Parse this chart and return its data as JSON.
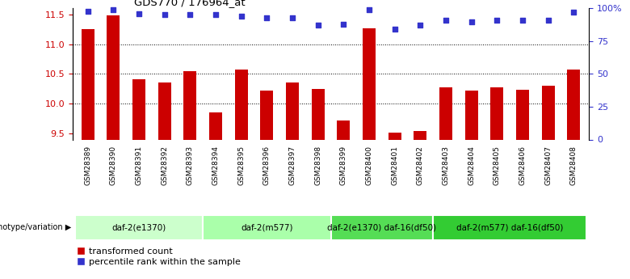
{
  "title": "GDS770 / 176964_at",
  "samples": [
    "GSM28389",
    "GSM28390",
    "GSM28391",
    "GSM28392",
    "GSM28393",
    "GSM28394",
    "GSM28395",
    "GSM28396",
    "GSM28397",
    "GSM28398",
    "GSM28399",
    "GSM28400",
    "GSM28401",
    "GSM28402",
    "GSM28403",
    "GSM28404",
    "GSM28405",
    "GSM28406",
    "GSM28407",
    "GSM28408"
  ],
  "bar_values": [
    11.25,
    11.48,
    10.41,
    10.35,
    10.55,
    9.85,
    10.57,
    10.22,
    10.35,
    10.25,
    9.72,
    11.27,
    9.52,
    9.54,
    10.28,
    10.22,
    10.28,
    10.24,
    10.3,
    10.57
  ],
  "percentile_values": [
    98,
    99,
    96,
    95,
    95,
    95,
    94,
    93,
    93,
    87,
    88,
    99,
    84,
    87,
    91,
    90,
    91,
    91,
    91,
    97
  ],
  "bar_color": "#cc0000",
  "dot_color": "#3333cc",
  "ymin": 9.4,
  "ymax": 11.6,
  "ylim_left": [
    9.4,
    11.6
  ],
  "ylim_right": [
    0,
    100
  ],
  "yticks_left": [
    9.5,
    10.0,
    10.5,
    11.0,
    11.5
  ],
  "yticks_right": [
    0,
    25,
    50,
    75,
    100
  ],
  "ytick_labels_right": [
    "0",
    "25",
    "50",
    "75",
    "100%"
  ],
  "grid_lines": [
    10.0,
    10.5,
    11.0
  ],
  "groups": [
    {
      "label": "daf-2(e1370)",
      "start": 0,
      "end": 5,
      "color": "#ccffcc"
    },
    {
      "label": "daf-2(m577)",
      "start": 5,
      "end": 10,
      "color": "#aaffaa"
    },
    {
      "label": "daf-2(e1370) daf-16(df50)",
      "start": 10,
      "end": 14,
      "color": "#55dd55"
    },
    {
      "label": "daf-2(m577) daf-16(df50)",
      "start": 14,
      "end": 20,
      "color": "#33cc33"
    }
  ],
  "xlabel_genotype": "genotype/variation",
  "legend_bar_label": "transformed count",
  "legend_dot_label": "percentile rank within the sample",
  "bg_color": "#ffffff",
  "tick_bg_color": "#bbbbbb",
  "bar_width": 0.5
}
